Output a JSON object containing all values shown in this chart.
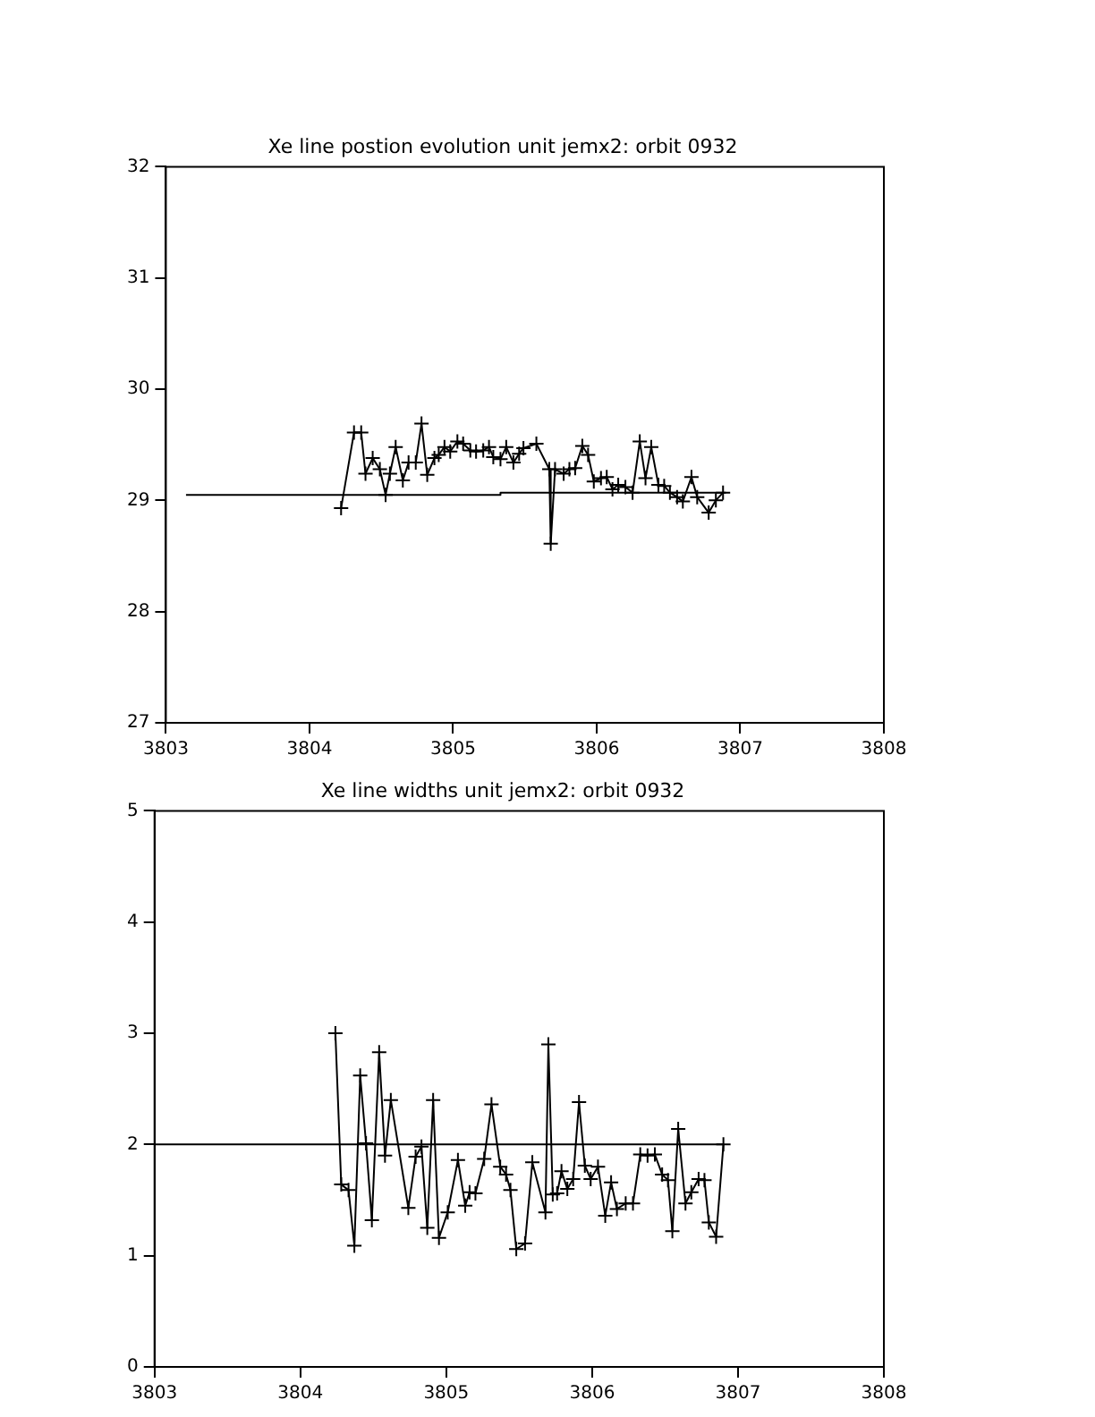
{
  "chart_data": [
    {
      "type": "line",
      "title": "Xe line postion evolution unit jemx2: orbit 0932",
      "xlim": [
        3803,
        3808
      ],
      "xticks": [
        3803,
        3804,
        3805,
        3806,
        3807,
        3808
      ],
      "ylim": [
        27,
        32
      ],
      "yticks": [
        27,
        28,
        29,
        30,
        31,
        32
      ],
      "grid": false,
      "legend": false,
      "marker": "cross",
      "line_style": "solid",
      "series": [
        {
          "color": "#000000",
          "x": [
            3804.22,
            3804.31,
            3804.36,
            3804.39,
            3804.44,
            3804.49,
            3804.53,
            3804.56,
            3804.6,
            3804.65,
            3804.69,
            3804.74,
            3804.78,
            3804.82,
            3804.87,
            3804.9,
            3804.94,
            3804.98,
            3805.03,
            3805.07,
            3805.12,
            3805.16,
            3805.21,
            3805.25,
            3805.28,
            3805.33,
            3805.37,
            3805.42,
            3805.46,
            3805.49,
            3805.58,
            3805.67,
            3805.68,
            3805.71,
            3805.77,
            3805.81,
            3805.85,
            3805.9,
            3805.94,
            3805.98,
            3806.03,
            3806.07,
            3806.11,
            3806.15,
            3806.2,
            3806.25,
            3806.3,
            3806.34,
            3806.38,
            3806.43,
            3806.47,
            3806.51,
            3806.56,
            3806.6,
            3806.66,
            3806.7,
            3806.78,
            3806.83,
            3806.88
          ],
          "values": [
            28.93,
            29.61,
            29.61,
            29.24,
            29.38,
            29.28,
            29.05,
            29.24,
            29.48,
            29.18,
            29.34,
            29.34,
            29.69,
            29.23,
            29.38,
            29.41,
            29.48,
            29.44,
            29.53,
            29.51,
            29.45,
            29.44,
            29.45,
            29.48,
            29.39,
            29.37,
            29.48,
            29.34,
            29.42,
            29.47,
            29.51,
            29.28,
            28.61,
            29.28,
            29.24,
            29.28,
            29.29,
            29.49,
            29.41,
            29.17,
            29.2,
            29.21,
            29.1,
            29.14,
            29.12,
            29.07,
            29.53,
            29.2,
            29.48,
            29.14,
            29.13,
            29.07,
            29.03,
            28.99,
            29.21,
            29.03,
            28.89,
            29.0,
            29.07
          ]
        },
        {
          "color": "#000000",
          "marker": "none",
          "x": [
            3803.14,
            3805.33,
            3805.33,
            3806.9
          ],
          "values": [
            29.05,
            29.05,
            29.07,
            29.07
          ]
        }
      ]
    },
    {
      "type": "line",
      "title": "Xe line widths unit jemx2: orbit 0932",
      "xlim": [
        3803,
        3808
      ],
      "xticks": [
        3803,
        3804,
        3805,
        3806,
        3807,
        3808
      ],
      "ylim": [
        0,
        5
      ],
      "yticks": [
        0,
        1,
        2,
        3,
        4,
        5
      ],
      "grid": false,
      "legend": false,
      "marker": "cross",
      "line_style": "solid",
      "series": [
        {
          "color": "#000000",
          "x": [
            3804.24,
            3804.28,
            3804.33,
            3804.37,
            3804.41,
            3804.45,
            3804.49,
            3804.54,
            3804.58,
            3804.62,
            3804.74,
            3804.79,
            3804.83,
            3804.87,
            3804.91,
            3804.95,
            3805.01,
            3805.08,
            3805.13,
            3805.16,
            3805.2,
            3805.26,
            3805.31,
            3805.37,
            3805.41,
            3805.44,
            3805.48,
            3805.54,
            3805.59,
            3805.68,
            3805.7,
            3805.73,
            3805.76,
            3805.79,
            3805.83,
            3805.87,
            3805.91,
            3805.95,
            3805.99,
            3806.04,
            3806.09,
            3806.13,
            3806.17,
            3806.23,
            3806.28,
            3806.33,
            3806.38,
            3806.43,
            3806.48,
            3806.52,
            3806.55,
            3806.59,
            3806.64,
            3806.68,
            3806.73,
            3806.77,
            3806.8,
            3806.85,
            3806.9
          ],
          "values": [
            3.0,
            1.64,
            1.59,
            1.09,
            2.62,
            2.01,
            1.32,
            2.83,
            1.9,
            2.4,
            1.43,
            1.89,
            1.98,
            1.25,
            2.4,
            1.16,
            1.39,
            1.86,
            1.45,
            1.57,
            1.56,
            1.87,
            2.36,
            1.8,
            1.73,
            1.59,
            1.06,
            1.11,
            1.84,
            1.39,
            2.9,
            1.55,
            1.56,
            1.76,
            1.6,
            1.69,
            2.38,
            1.81,
            1.69,
            1.8,
            1.36,
            1.66,
            1.42,
            1.47,
            1.47,
            1.91,
            1.9,
            1.91,
            1.73,
            1.68,
            1.22,
            2.14,
            1.47,
            1.57,
            1.69,
            1.68,
            1.3,
            1.17,
            2.0
          ]
        },
        {
          "color": "#000000",
          "marker": "none",
          "x": [
            3803.0,
            3806.9
          ],
          "values": [
            2.0,
            2.0
          ]
        }
      ]
    }
  ]
}
